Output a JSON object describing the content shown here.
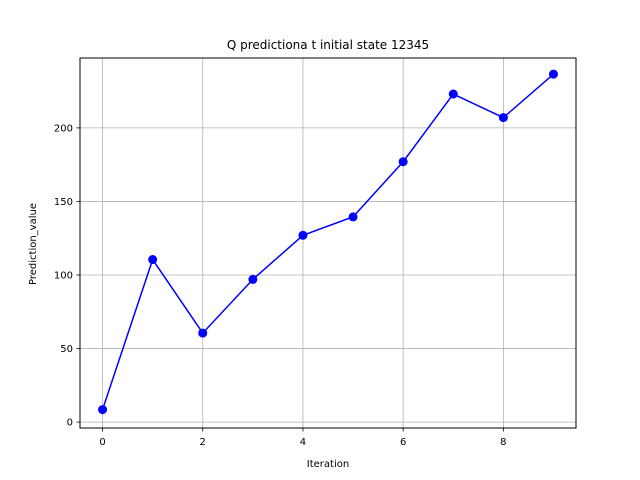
{
  "chart_data": {
    "type": "line",
    "title": "Q predictiona t initial state 12345",
    "xlabel": "Iteration",
    "ylabel": "Prediction_value",
    "x": [
      0,
      1,
      2,
      3,
      4,
      5,
      6,
      7,
      8,
      9
    ],
    "series": [
      {
        "values": [
          8.5,
          110.5,
          60.5,
          97,
          127,
          139.5,
          177,
          223,
          207,
          236.5
        ],
        "color": "#0000ff",
        "marker": "circle"
      }
    ],
    "xlim": [
      -0.45,
      9.45
    ],
    "ylim": [
      -4,
      247.5
    ],
    "xticks": [
      "0",
      "2",
      "4",
      "6",
      "8"
    ],
    "yticks": [
      "0",
      "50",
      "100",
      "150",
      "200"
    ],
    "grid": true,
    "colors": {
      "line": "#0000ff",
      "grid": "#b0b0b0",
      "axis": "#000000"
    }
  }
}
